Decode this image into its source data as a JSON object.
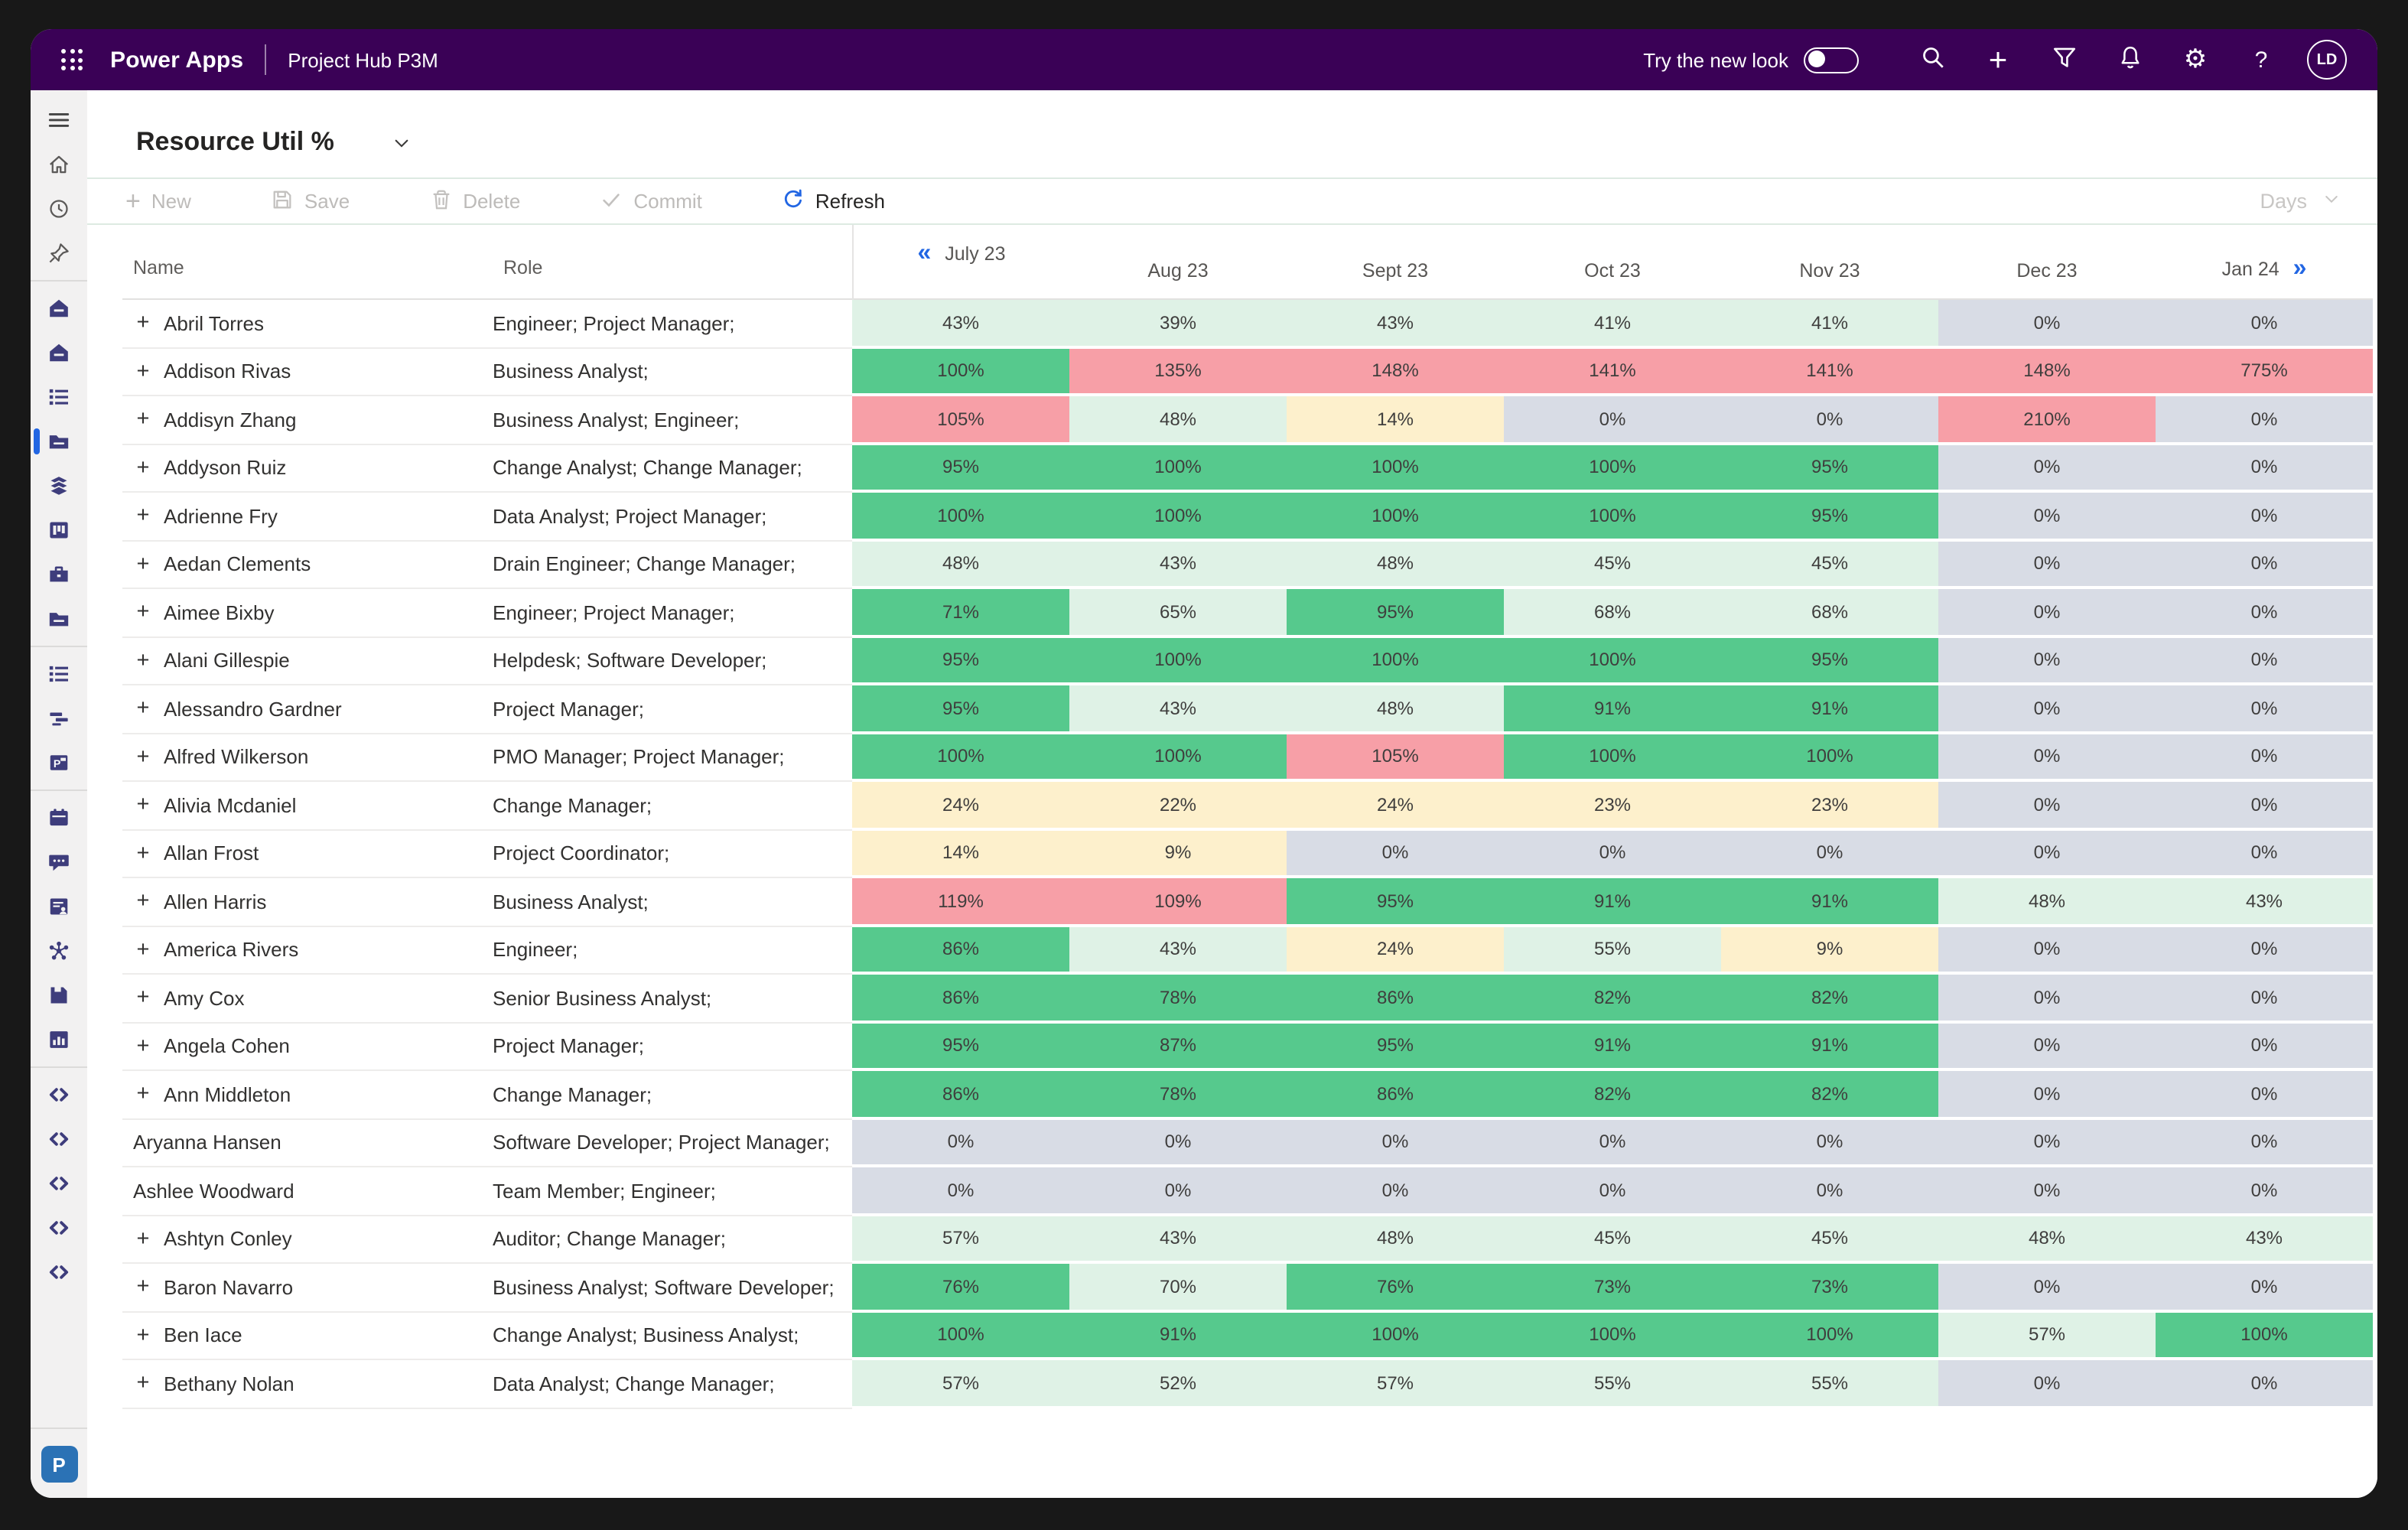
{
  "topbar": {
    "app_name": "Power Apps",
    "environment": "Project Hub P3M",
    "try_new_look": "Try the new look",
    "avatar_initials": "LD",
    "icons": [
      "waffle-icon",
      "search-icon",
      "add-icon",
      "filter-icon",
      "notifications-icon",
      "settings-icon",
      "help-icon"
    ]
  },
  "sidebar": {
    "items": [
      {
        "type": "item",
        "icon": "menu",
        "name": "menu"
      },
      {
        "type": "item",
        "icon": "home-outline",
        "name": "home"
      },
      {
        "type": "item",
        "icon": "recent-clock",
        "name": "recent"
      },
      {
        "type": "item",
        "icon": "pin",
        "name": "pinned"
      },
      {
        "type": "divider"
      },
      {
        "type": "item",
        "icon": "home-filled",
        "name": "area-home-1"
      },
      {
        "type": "item",
        "icon": "home-filled",
        "name": "area-home-2"
      },
      {
        "type": "item",
        "icon": "entity-list",
        "name": "entity-list-1"
      },
      {
        "type": "item",
        "icon": "folder",
        "name": "projects",
        "selected": true
      },
      {
        "type": "item",
        "icon": "layers",
        "name": "layers"
      },
      {
        "type": "item",
        "icon": "board",
        "name": "board"
      },
      {
        "type": "item",
        "icon": "toolbox",
        "name": "toolbox"
      },
      {
        "type": "item",
        "icon": "folder",
        "name": "folder-2"
      },
      {
        "type": "divider"
      },
      {
        "type": "item",
        "icon": "entity-list",
        "name": "entity-list-2"
      },
      {
        "type": "item",
        "icon": "gantt",
        "name": "gantt"
      },
      {
        "type": "item",
        "icon": "ppt-file",
        "name": "presentation"
      },
      {
        "type": "divider"
      },
      {
        "type": "item",
        "icon": "calendar",
        "name": "calendar"
      },
      {
        "type": "item",
        "icon": "chat",
        "name": "chat"
      },
      {
        "type": "item",
        "icon": "account-doc",
        "name": "account-doc"
      },
      {
        "type": "item",
        "icon": "flowchart",
        "name": "flowchart"
      },
      {
        "type": "item",
        "icon": "save-card",
        "name": "save-card"
      },
      {
        "type": "item",
        "icon": "bar-chart",
        "name": "reports"
      },
      {
        "type": "divider"
      },
      {
        "type": "item",
        "icon": "code",
        "name": "custom-1"
      },
      {
        "type": "item",
        "icon": "code",
        "name": "custom-2"
      },
      {
        "type": "item",
        "icon": "code",
        "name": "custom-3"
      },
      {
        "type": "item",
        "icon": "code",
        "name": "custom-4"
      },
      {
        "type": "item",
        "icon": "code",
        "name": "custom-5"
      }
    ],
    "power_apps_button": "P"
  },
  "view": {
    "title": "Resource Util %"
  },
  "toolbar": {
    "new_label": "New",
    "save_label": "Save",
    "delete_label": "Delete",
    "commit_label": "Commit",
    "refresh_label": "Refresh",
    "interval_label": "Days"
  },
  "table": {
    "name_header": "Name",
    "role_header": "Role",
    "months": [
      "July 23",
      "Aug 23",
      "Sept 23",
      "Oct 23",
      "Nov 23",
      "Dec 23",
      "Jan 24"
    ],
    "rows": [
      {
        "name": "Abril Torres",
        "role": "Engineer; Project Manager;",
        "expandable": true,
        "values": [
          [
            "43%",
            "light"
          ],
          [
            "39%",
            "light"
          ],
          [
            "43%",
            "light"
          ],
          [
            "41%",
            "light"
          ],
          [
            "41%",
            "light"
          ],
          [
            "0%",
            "zero"
          ],
          [
            "0%",
            "zero"
          ]
        ]
      },
      {
        "name": "Addison Rivas",
        "role": "Business Analyst;",
        "expandable": true,
        "values": [
          [
            "100%",
            "green"
          ],
          [
            "135%",
            "red"
          ],
          [
            "148%",
            "red"
          ],
          [
            "141%",
            "red"
          ],
          [
            "141%",
            "red"
          ],
          [
            "148%",
            "red"
          ],
          [
            "775%",
            "red"
          ]
        ]
      },
      {
        "name": "Addisyn Zhang",
        "role": "Business Analyst; Engineer;",
        "expandable": true,
        "values": [
          [
            "105%",
            "red"
          ],
          [
            "48%",
            "light"
          ],
          [
            "14%",
            "yellow"
          ],
          [
            "0%",
            "zero"
          ],
          [
            "0%",
            "zero"
          ],
          [
            "210%",
            "red"
          ],
          [
            "0%",
            "zero"
          ]
        ]
      },
      {
        "name": "Addyson Ruiz",
        "role": "Change Analyst; Change Manager;",
        "expandable": true,
        "values": [
          [
            "95%",
            "green"
          ],
          [
            "100%",
            "green"
          ],
          [
            "100%",
            "green"
          ],
          [
            "100%",
            "green"
          ],
          [
            "95%",
            "green"
          ],
          [
            "0%",
            "zero"
          ],
          [
            "0%",
            "zero"
          ]
        ]
      },
      {
        "name": "Adrienne Fry",
        "role": "Data Analyst; Project Manager;",
        "expandable": true,
        "values": [
          [
            "100%",
            "green"
          ],
          [
            "100%",
            "green"
          ],
          [
            "100%",
            "green"
          ],
          [
            "100%",
            "green"
          ],
          [
            "95%",
            "green"
          ],
          [
            "0%",
            "zero"
          ],
          [
            "0%",
            "zero"
          ]
        ]
      },
      {
        "name": "Aedan Clements",
        "role": "Drain Engineer; Change Manager;",
        "expandable": true,
        "values": [
          [
            "48%",
            "light"
          ],
          [
            "43%",
            "light"
          ],
          [
            "48%",
            "light"
          ],
          [
            "45%",
            "light"
          ],
          [
            "45%",
            "light"
          ],
          [
            "0%",
            "zero"
          ],
          [
            "0%",
            "zero"
          ]
        ]
      },
      {
        "name": "Aimee Bixby",
        "role": "Engineer; Project Manager;",
        "expandable": true,
        "values": [
          [
            "71%",
            "green"
          ],
          [
            "65%",
            "light"
          ],
          [
            "95%",
            "green"
          ],
          [
            "68%",
            "light"
          ],
          [
            "68%",
            "light"
          ],
          [
            "0%",
            "zero"
          ],
          [
            "0%",
            "zero"
          ]
        ]
      },
      {
        "name": "Alani Gillespie",
        "role": "Helpdesk; Software Developer;",
        "expandable": true,
        "values": [
          [
            "95%",
            "green"
          ],
          [
            "100%",
            "green"
          ],
          [
            "100%",
            "green"
          ],
          [
            "100%",
            "green"
          ],
          [
            "95%",
            "green"
          ],
          [
            "0%",
            "zero"
          ],
          [
            "0%",
            "zero"
          ]
        ]
      },
      {
        "name": "Alessandro Gardner",
        "role": "Project Manager;",
        "expandable": true,
        "values": [
          [
            "95%",
            "green"
          ],
          [
            "43%",
            "light"
          ],
          [
            "48%",
            "light"
          ],
          [
            "91%",
            "green"
          ],
          [
            "91%",
            "green"
          ],
          [
            "0%",
            "zero"
          ],
          [
            "0%",
            "zero"
          ]
        ]
      },
      {
        "name": "Alfred Wilkerson",
        "role": "PMO Manager; Project Manager;",
        "expandable": true,
        "values": [
          [
            "100%",
            "green"
          ],
          [
            "100%",
            "green"
          ],
          [
            "105%",
            "red"
          ],
          [
            "100%",
            "green"
          ],
          [
            "100%",
            "green"
          ],
          [
            "0%",
            "zero"
          ],
          [
            "0%",
            "zero"
          ]
        ]
      },
      {
        "name": "Alivia Mcdaniel",
        "role": "Change Manager;",
        "expandable": true,
        "values": [
          [
            "24%",
            "yellow"
          ],
          [
            "22%",
            "yellow"
          ],
          [
            "24%",
            "yellow"
          ],
          [
            "23%",
            "yellow"
          ],
          [
            "23%",
            "yellow"
          ],
          [
            "0%",
            "zero"
          ],
          [
            "0%",
            "zero"
          ]
        ]
      },
      {
        "name": "Allan Frost",
        "role": "Project Coordinator;",
        "expandable": true,
        "values": [
          [
            "14%",
            "yellow"
          ],
          [
            "9%",
            "yellow"
          ],
          [
            "0%",
            "zero"
          ],
          [
            "0%",
            "zero"
          ],
          [
            "0%",
            "zero"
          ],
          [
            "0%",
            "zero"
          ],
          [
            "0%",
            "zero"
          ]
        ]
      },
      {
        "name": "Allen Harris",
        "role": "Business Analyst;",
        "expandable": true,
        "values": [
          [
            "119%",
            "red"
          ],
          [
            "109%",
            "red"
          ],
          [
            "95%",
            "green"
          ],
          [
            "91%",
            "green"
          ],
          [
            "91%",
            "green"
          ],
          [
            "48%",
            "light"
          ],
          [
            "43%",
            "light"
          ]
        ]
      },
      {
        "name": "America Rivers",
        "role": "Engineer;",
        "expandable": true,
        "values": [
          [
            "86%",
            "green"
          ],
          [
            "43%",
            "light"
          ],
          [
            "24%",
            "yellow"
          ],
          [
            "55%",
            "light"
          ],
          [
            "9%",
            "yellow"
          ],
          [
            "0%",
            "zero"
          ],
          [
            "0%",
            "zero"
          ]
        ]
      },
      {
        "name": "Amy Cox",
        "role": "Senior Business Analyst;",
        "expandable": true,
        "values": [
          [
            "86%",
            "green"
          ],
          [
            "78%",
            "green"
          ],
          [
            "86%",
            "green"
          ],
          [
            "82%",
            "green"
          ],
          [
            "82%",
            "green"
          ],
          [
            "0%",
            "zero"
          ],
          [
            "0%",
            "zero"
          ]
        ]
      },
      {
        "name": "Angela Cohen",
        "role": "Project Manager;",
        "expandable": true,
        "values": [
          [
            "95%",
            "green"
          ],
          [
            "87%",
            "green"
          ],
          [
            "95%",
            "green"
          ],
          [
            "91%",
            "green"
          ],
          [
            "91%",
            "green"
          ],
          [
            "0%",
            "zero"
          ],
          [
            "0%",
            "zero"
          ]
        ]
      },
      {
        "name": "Ann Middleton",
        "role": "Change Manager;",
        "expandable": true,
        "values": [
          [
            "86%",
            "green"
          ],
          [
            "78%",
            "green"
          ],
          [
            "86%",
            "green"
          ],
          [
            "82%",
            "green"
          ],
          [
            "82%",
            "green"
          ],
          [
            "0%",
            "zero"
          ],
          [
            "0%",
            "zero"
          ]
        ]
      },
      {
        "name": "Aryanna Hansen",
        "role": "Software Developer; Project Manager;",
        "expandable": false,
        "values": [
          [
            "0%",
            "zero"
          ],
          [
            "0%",
            "zero"
          ],
          [
            "0%",
            "zero"
          ],
          [
            "0%",
            "zero"
          ],
          [
            "0%",
            "zero"
          ],
          [
            "0%",
            "zero"
          ],
          [
            "0%",
            "zero"
          ]
        ]
      },
      {
        "name": "Ashlee Woodward",
        "role": "Team Member; Engineer;",
        "expandable": false,
        "values": [
          [
            "0%",
            "zero"
          ],
          [
            "0%",
            "zero"
          ],
          [
            "0%",
            "zero"
          ],
          [
            "0%",
            "zero"
          ],
          [
            "0%",
            "zero"
          ],
          [
            "0%",
            "zero"
          ],
          [
            "0%",
            "zero"
          ]
        ]
      },
      {
        "name": "Ashtyn Conley",
        "role": "Auditor; Change Manager;",
        "expandable": true,
        "values": [
          [
            "57%",
            "light"
          ],
          [
            "43%",
            "light"
          ],
          [
            "48%",
            "light"
          ],
          [
            "45%",
            "light"
          ],
          [
            "45%",
            "light"
          ],
          [
            "48%",
            "light"
          ],
          [
            "43%",
            "light"
          ]
        ]
      },
      {
        "name": "Baron Navarro",
        "role": "Business Analyst; Software Developer;",
        "expandable": true,
        "values": [
          [
            "76%",
            "green"
          ],
          [
            "70%",
            "light"
          ],
          [
            "76%",
            "green"
          ],
          [
            "73%",
            "green"
          ],
          [
            "73%",
            "green"
          ],
          [
            "0%",
            "zero"
          ],
          [
            "0%",
            "zero"
          ]
        ]
      },
      {
        "name": "Ben Iace",
        "role": "Change Analyst; Business Analyst;",
        "expandable": true,
        "values": [
          [
            "100%",
            "green"
          ],
          [
            "91%",
            "green"
          ],
          [
            "100%",
            "green"
          ],
          [
            "100%",
            "green"
          ],
          [
            "100%",
            "green"
          ],
          [
            "57%",
            "light"
          ],
          [
            "100%",
            "green"
          ]
        ]
      },
      {
        "name": "Bethany Nolan",
        "role": "Data Analyst; Change Manager;",
        "expandable": true,
        "values": [
          [
            "57%",
            "light"
          ],
          [
            "52%",
            "light"
          ],
          [
            "57%",
            "light"
          ],
          [
            "55%",
            "light"
          ],
          [
            "55%",
            "light"
          ],
          [
            "0%",
            "zero"
          ],
          [
            "0%",
            "zero"
          ]
        ]
      }
    ]
  },
  "colors": {
    "topbar_purple": "#3A0156",
    "accent_blue": "#2266E3",
    "util_green": "#56C98D",
    "util_light_green": "#DFF2E6",
    "util_yellow": "#FDF0CC",
    "util_red": "#F79FA7",
    "util_zero_gray": "#D8DCE5",
    "power_apps_button_blue": "#2B72B5"
  }
}
